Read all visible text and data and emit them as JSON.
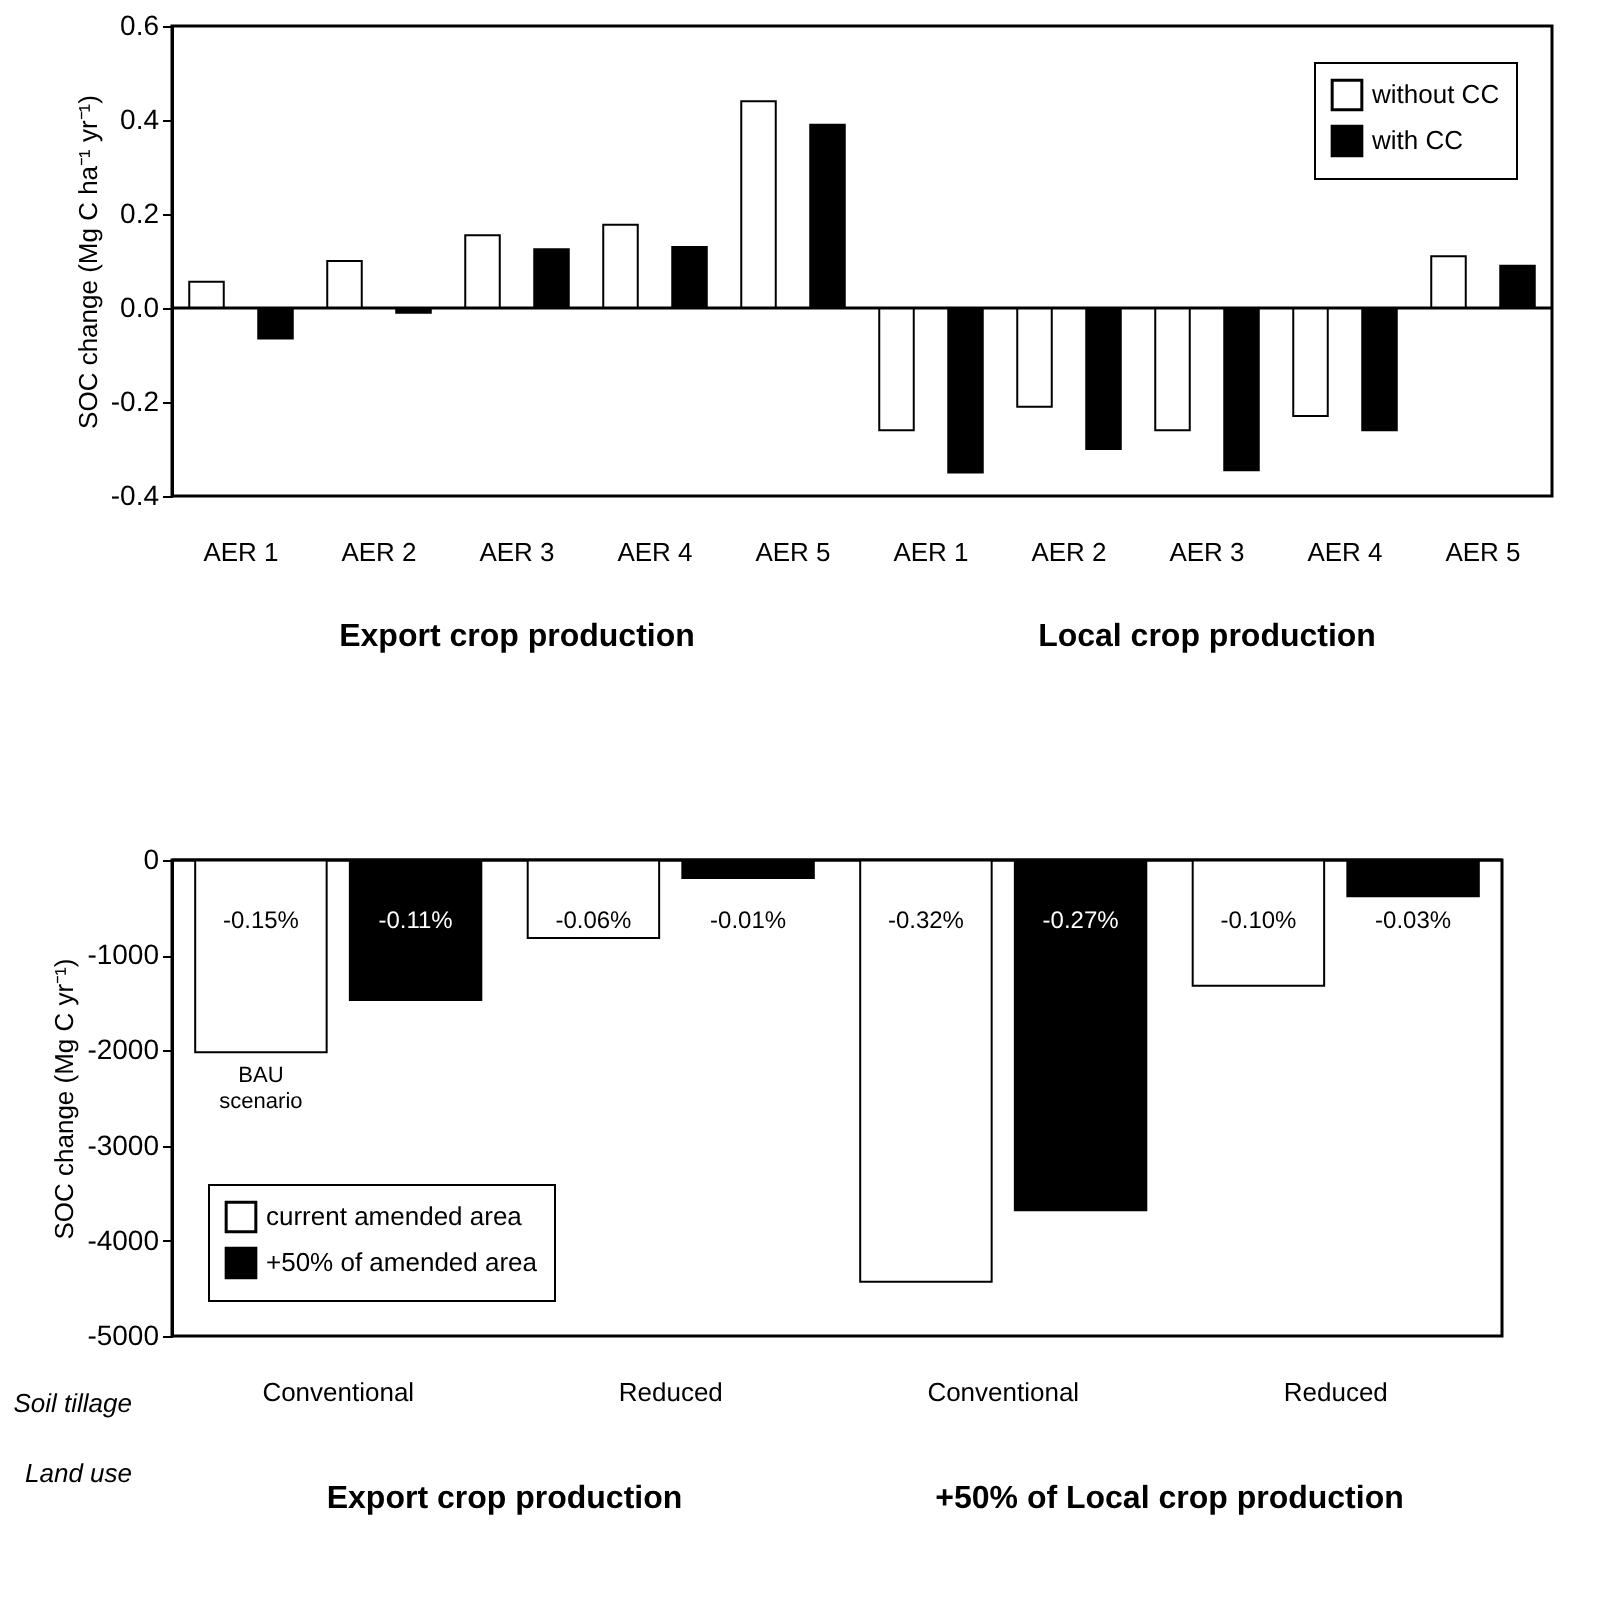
{
  "chart_data": [
    {
      "type": "bar",
      "ylabel": "SOC change (Mg C ha⁻¹ yr⁻¹)",
      "categories": [
        "AER 1",
        "AER 2",
        "AER 3",
        "AER 4",
        "AER 5",
        "AER 1",
        "AER 2",
        "AER 3",
        "AER 4",
        "AER 5"
      ],
      "series": [
        {
          "name": "without CC",
          "color": "#ffffff",
          "values": [
            0.056,
            0.1,
            0.155,
            0.177,
            0.44,
            -0.26,
            -0.21,
            -0.26,
            -0.23,
            0.11
          ]
        },
        {
          "name": "with CC",
          "color": "#000000",
          "values": [
            -0.065,
            -0.01,
            0.125,
            0.13,
            0.39,
            -0.35,
            -0.3,
            -0.345,
            -0.26,
            0.09
          ]
        }
      ],
      "ylim": [
        -0.4,
        0.6
      ],
      "yticks": [
        -0.4,
        -0.2,
        {
          "value": 0,
          "label": "0.0"
        },
        0.2,
        0.4,
        0.6
      ],
      "legend": "top right",
      "annotations": [
        "Export crop production",
        "Local crop production"
      ]
    },
    {
      "type": "bar",
      "ylabel": "SOC change (Mg C yr⁻¹)",
      "categories": [
        "Conventional",
        "Reduced",
        "Conventional",
        "Reduced"
      ],
      "series": [
        {
          "name": "current amended area",
          "color": "#ffffff",
          "values": [
            -2020,
            -820,
            -4430,
            -1320
          ]
        },
        {
          "name": "+50% of amended area",
          "color": "#000000",
          "values": [
            -1470,
            -190,
            -3680,
            -380
          ]
        }
      ],
      "ylim": [
        -5000,
        0
      ],
      "yticks": [
        -5000,
        -4000,
        -3000,
        -2000,
        -1000,
        0
      ],
      "legend": "bottom left",
      "annotations": [
        "-0.15%",
        "-0.11%",
        "-0.06%",
        "-0.01%",
        "-0.32%",
        "-0.27%",
        "-0.10%",
        "-0.03%",
        "BAU scenario",
        "Soil tillage",
        "Land use",
        "Export crop production",
        "+50% of Local crop production"
      ]
    }
  ]
}
